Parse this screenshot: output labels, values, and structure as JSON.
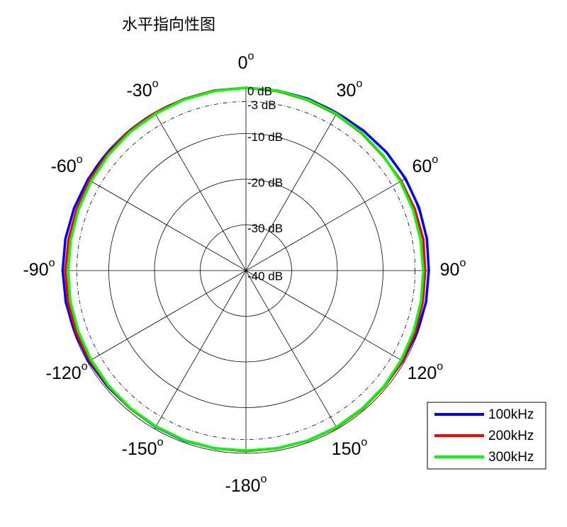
{
  "chart_data": {
    "type": "polar",
    "title": "水平指向性图",
    "theta_direction": "clockwise",
    "theta_zero": "top",
    "theta_unit_mark": "o",
    "thetaticks": [
      0,
      30,
      60,
      90,
      120,
      150,
      -180,
      -150,
      -120,
      -90,
      -60,
      -30
    ],
    "rlim": [
      -40,
      0
    ],
    "rticks": [
      {
        "value": -40,
        "label": "-40 dB"
      },
      {
        "value": -30,
        "label": "-30 dB"
      },
      {
        "value": -20,
        "label": "-20 dB"
      },
      {
        "value": -10,
        "label": "-10 dB"
      },
      {
        "value": -3,
        "label": "-3 dB"
      },
      {
        "value": 0,
        "label": "0 dB"
      }
    ],
    "rgrid_dash": [
      "solid",
      "solid",
      "solid",
      "solid",
      "dashdot",
      "solid"
    ],
    "legend_position": "lower right",
    "theta": [
      0,
      10,
      20,
      30,
      40,
      50,
      60,
      70,
      80,
      90,
      100,
      110,
      120,
      130,
      140,
      150,
      160,
      170,
      180,
      190,
      200,
      210,
      220,
      230,
      240,
      250,
      260,
      270,
      280,
      290,
      300,
      310,
      320,
      330,
      340,
      350
    ],
    "series": [
      {
        "name": "100kHz",
        "color": "#0000ff",
        "values": [
          0,
          0,
          0,
          -0.2,
          0,
          0.2,
          0.3,
          0.3,
          0.2,
          0,
          0,
          -0.2,
          -0.4,
          -0.5,
          -0.5,
          -0.4,
          -0.4,
          -0.5,
          -0.5,
          -0.5,
          -0.4,
          -0.5,
          -0.6,
          -0.5,
          -0.3,
          -0.2,
          0,
          0.1,
          0.1,
          0,
          -0.1,
          -0.2,
          -0.3,
          -0.2,
          -0.1,
          0
        ]
      },
      {
        "name": "200kHz",
        "color": "#ff0000",
        "values": [
          0,
          -0.1,
          -0.3,
          -0.5,
          -0.7,
          -0.9,
          -0.8,
          -0.7,
          -0.6,
          -0.8,
          -0.7,
          -0.6,
          -0.5,
          -0.5,
          -0.4,
          -0.3,
          -0.4,
          -0.5,
          -0.5,
          -0.5,
          -0.5,
          -0.6,
          -0.6,
          -0.7,
          -0.6,
          -0.5,
          -0.5,
          -0.5,
          -0.6,
          -0.6,
          -0.5,
          -0.4,
          -0.3,
          -0.2,
          -0.1,
          0
        ]
      },
      {
        "name": "300kHz",
        "color": "#00ff00",
        "values": [
          0,
          0,
          -0.2,
          -0.4,
          -0.6,
          -0.8,
          -1,
          -1.1,
          -1.2,
          -1.2,
          -1.1,
          -1,
          -0.8,
          -0.6,
          -0.5,
          -0.4,
          -0.4,
          -0.5,
          -0.6,
          -0.5,
          -0.5,
          -0.6,
          -0.7,
          -0.8,
          -0.9,
          -1,
          -1,
          -1.1,
          -1.1,
          -1,
          -0.9,
          -0.7,
          -0.5,
          -0.4,
          -0.2,
          -0.1
        ]
      }
    ]
  }
}
